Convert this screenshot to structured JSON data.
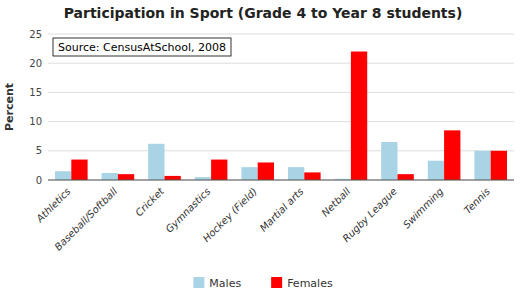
{
  "chart_data": {
    "type": "bar",
    "title": "Participation in Sport (Grade 4 to Year 8 students)",
    "ylabel": "Percent",
    "annotation": "Source: CensusAtSchool, 2008",
    "categories": [
      "Athletics",
      "Baseball/Softball",
      "Cricket",
      "Gymnastics",
      "Hockey (Field)",
      "Martial arts",
      "Netball",
      "Rugby League",
      "Swimming",
      "Tennis"
    ],
    "series": [
      {
        "name": "Males",
        "color": "#a8d4e6",
        "values": [
          1.5,
          1.2,
          6.2,
          0.5,
          2.2,
          2.2,
          0.2,
          6.5,
          3.3,
          5.0
        ]
      },
      {
        "name": "Females",
        "color": "#ff0000",
        "values": [
          3.5,
          1.0,
          0.7,
          3.5,
          3.0,
          1.3,
          22.0,
          1.0,
          8.5,
          5.0
        ]
      }
    ],
    "ylim": [
      0,
      25
    ],
    "yticks": [
      0,
      5,
      10,
      15,
      20,
      25
    ],
    "grid": true,
    "legend": "bottom"
  }
}
